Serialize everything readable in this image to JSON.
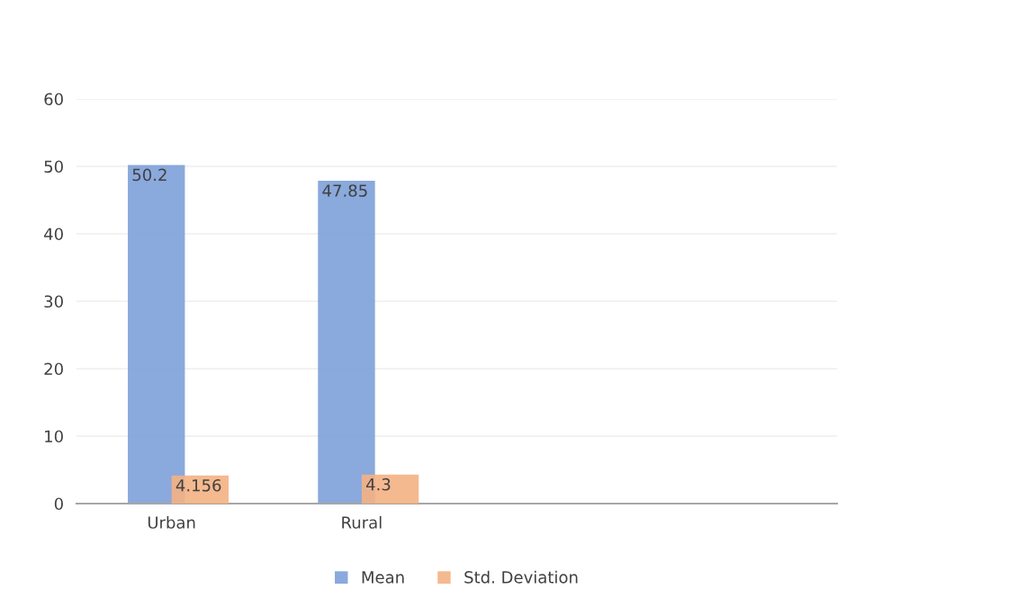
{
  "chart_data": {
    "type": "bar",
    "categories": [
      "Urban",
      "Rural",
      null,
      null
    ],
    "series": [
      {
        "name": "Mean",
        "color": "#7da0d8",
        "values": [
          50.2,
          47.85,
          null,
          null
        ]
      },
      {
        "name": "Std. Deviation",
        "color": "#f4b183",
        "values": [
          4.156,
          4.3,
          null,
          null
        ]
      }
    ],
    "ylim": [
      0,
      60
    ],
    "yticks": [
      0,
      10,
      20,
      30,
      40,
      50,
      60
    ],
    "grid": "y",
    "legend": "bottom",
    "data_labels": true
  }
}
